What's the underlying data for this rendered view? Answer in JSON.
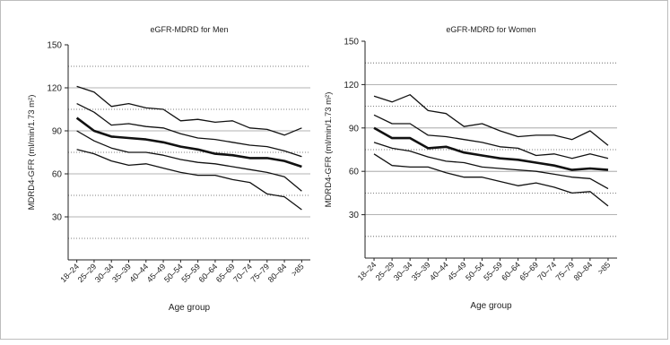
{
  "chart_data": [
    {
      "type": "line",
      "title": "eGFR-MDRD for Men",
      "xlabel": "Age group",
      "ylabel": "MDRD4-GFR (ml/min/1.73 m²)",
      "ylim": [
        0,
        150
      ],
      "yticks": [
        30,
        60,
        90,
        120,
        150
      ],
      "dotted_gridlines": [
        15,
        45,
        75,
        105,
        135
      ],
      "grid": true,
      "categories": [
        "18–24",
        "25–29",
        "30–34",
        "35–39",
        "40–44",
        "45–49",
        "50–54",
        "55–59",
        "60–64",
        "65–69",
        "70–74",
        "75–79",
        "80–84",
        ">85"
      ],
      "series": [
        {
          "values": [
            121,
            117,
            107,
            109,
            106,
            105,
            97,
            98,
            96,
            97,
            92,
            91,
            87,
            92
          ],
          "weight": "thin"
        },
        {
          "values": [
            109,
            103,
            94,
            95,
            93,
            92,
            88,
            85,
            84,
            82,
            80,
            79,
            76,
            72
          ],
          "weight": "thin"
        },
        {
          "values": [
            99,
            90,
            86,
            85,
            84,
            82,
            79,
            77,
            74,
            73,
            71,
            71,
            69,
            65
          ],
          "weight": "bold"
        },
        {
          "values": [
            90,
            83,
            78,
            75,
            75,
            73,
            70,
            68,
            67,
            65,
            63,
            61,
            58,
            48
          ],
          "weight": "thin"
        },
        {
          "values": [
            77,
            74,
            69,
            66,
            67,
            64,
            61,
            59,
            59,
            56,
            54,
            46,
            44,
            35
          ],
          "weight": "thin"
        }
      ]
    },
    {
      "type": "line",
      "title": "eGFR-MDRD for Women",
      "xlabel": "Age group",
      "ylabel": "MDRD4-GFR (ml/min/1.73 m²)",
      "ylim": [
        0,
        150
      ],
      "yticks": [
        30,
        60,
        90,
        120,
        150
      ],
      "dotted_gridlines": [
        15,
        45,
        75,
        105,
        135
      ],
      "grid": true,
      "categories": [
        "18–24",
        "25–29",
        "30–34",
        "35–39",
        "40–44",
        "45–49",
        "50–54",
        "55–59",
        "60–64",
        "65–69",
        "70–74",
        "75–79",
        "80–84",
        ">85"
      ],
      "series": [
        {
          "values": [
            112,
            108,
            113,
            102,
            100,
            91,
            93,
            88,
            84,
            85,
            85,
            82,
            88,
            78
          ],
          "weight": "thin"
        },
        {
          "values": [
            99,
            93,
            93,
            85,
            84,
            82,
            80,
            77,
            76,
            71,
            72,
            69,
            72,
            69
          ],
          "weight": "thin"
        },
        {
          "values": [
            90,
            83,
            83,
            76,
            77,
            73,
            71,
            69,
            68,
            66,
            64,
            61,
            62,
            61
          ],
          "weight": "bold"
        },
        {
          "values": [
            80,
            76,
            74,
            70,
            67,
            66,
            63,
            62,
            61,
            60,
            58,
            56,
            55,
            48
          ],
          "weight": "thin"
        },
        {
          "values": [
            72,
            64,
            63,
            63,
            59,
            56,
            56,
            53,
            50,
            52,
            49,
            45,
            46,
            36
          ],
          "weight": "thin"
        }
      ]
    }
  ]
}
